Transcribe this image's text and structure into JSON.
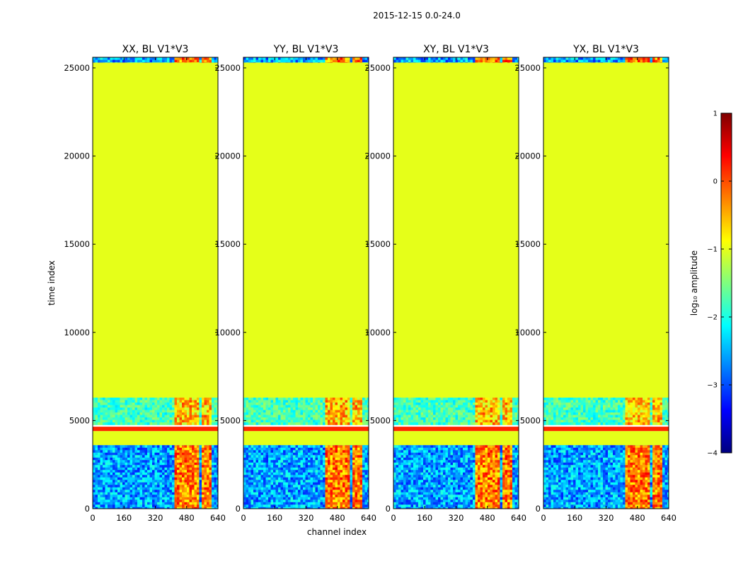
{
  "figure": {
    "suptitle": "2015-12-15 0.0-24.0",
    "xlabel": "channel index",
    "ylabel": "time index"
  },
  "colorbar": {
    "label": "log₁₀ amplitude",
    "ticks": [
      {
        "value": 1,
        "label": "1"
      },
      {
        "value": 0,
        "label": "0"
      },
      {
        "value": -1,
        "label": "−1"
      },
      {
        "value": -2,
        "label": "−2"
      },
      {
        "value": -3,
        "label": "−3"
      },
      {
        "value": -4,
        "label": "−4"
      }
    ],
    "colormap": "jet",
    "range": [
      -4,
      1
    ],
    "color_stops": [
      "#00007f",
      "#0000ff",
      "#007fff",
      "#00ffff",
      "#7fff7f",
      "#ffff00",
      "#ff7f00",
      "#ff0000",
      "#7f0000"
    ]
  },
  "chart_data": [
    {
      "type": "heatmap",
      "title": "XX, BL V1*V3",
      "xlabel": "channel index",
      "ylabel": "time index",
      "xlim": [
        0,
        640
      ],
      "ylim": [
        0,
        25600
      ],
      "xticks": [
        0,
        160,
        320,
        480,
        640
      ],
      "yticks": [
        0,
        5000,
        10000,
        15000,
        20000,
        25000
      ],
      "rows": [
        {
          "from": 25300,
          "to": 25600,
          "kind": "noise"
        },
        {
          "from": 6300,
          "to": 25300,
          "kind": "uniform",
          "log_amp": -1.0
        },
        {
          "from": 4800,
          "to": 6300,
          "kind": "medium"
        },
        {
          "from": 4400,
          "to": 4650,
          "kind": "band",
          "log_amp": 0.2
        },
        {
          "from": 3600,
          "to": 4400,
          "kind": "uniform",
          "log_amp": -1.0
        },
        {
          "from": 0,
          "to": 3600,
          "kind": "noise"
        }
      ],
      "hot_channels": [
        [
          405,
          450
        ],
        [
          455,
          495
        ],
        [
          505,
          540
        ],
        [
          555,
          595
        ]
      ]
    },
    {
      "type": "heatmap",
      "title": "YY, BL V1*V3",
      "xlabel": "channel index",
      "ylabel": "time index",
      "xlim": [
        0,
        640
      ],
      "ylim": [
        0,
        25600
      ],
      "xticks": [
        0,
        160,
        320,
        480,
        640
      ],
      "yticks": [
        0,
        5000,
        10000,
        15000,
        20000,
        25000
      ],
      "rows": [
        {
          "from": 25300,
          "to": 25600,
          "kind": "noise"
        },
        {
          "from": 6300,
          "to": 25300,
          "kind": "uniform",
          "log_amp": -1.0
        },
        {
          "from": 4800,
          "to": 6300,
          "kind": "medium"
        },
        {
          "from": 4400,
          "to": 4650,
          "kind": "band",
          "log_amp": 0.2
        },
        {
          "from": 3600,
          "to": 4400,
          "kind": "uniform",
          "log_amp": -1.0
        },
        {
          "from": 0,
          "to": 3600,
          "kind": "noise"
        }
      ],
      "hot_channels": [
        [
          405,
          450
        ],
        [
          455,
          495
        ],
        [
          505,
          540
        ],
        [
          555,
          595
        ]
      ]
    },
    {
      "type": "heatmap",
      "title": "XY, BL V1*V3",
      "xlabel": "channel index",
      "ylabel": "time index",
      "xlim": [
        0,
        640
      ],
      "ylim": [
        0,
        25600
      ],
      "xticks": [
        0,
        160,
        320,
        480,
        640
      ],
      "yticks": [
        0,
        5000,
        10000,
        15000,
        20000,
        25000
      ],
      "rows": [
        {
          "from": 25300,
          "to": 25600,
          "kind": "noise"
        },
        {
          "from": 6300,
          "to": 25300,
          "kind": "uniform",
          "log_amp": -1.0
        },
        {
          "from": 4800,
          "to": 6300,
          "kind": "medium"
        },
        {
          "from": 4400,
          "to": 4650,
          "kind": "band",
          "log_amp": 0.2
        },
        {
          "from": 3600,
          "to": 4400,
          "kind": "uniform",
          "log_amp": -1.0
        },
        {
          "from": 0,
          "to": 3600,
          "kind": "noise"
        }
      ],
      "hot_channels": [
        [
          405,
          450
        ],
        [
          455,
          495
        ],
        [
          505,
          540
        ],
        [
          555,
          595
        ]
      ]
    },
    {
      "type": "heatmap",
      "title": "YX, BL V1*V3",
      "xlabel": "channel index",
      "ylabel": "time index",
      "xlim": [
        0,
        640
      ],
      "ylim": [
        0,
        25600
      ],
      "xticks": [
        0,
        160,
        320,
        480,
        640
      ],
      "yticks": [
        0,
        5000,
        10000,
        15000,
        20000,
        25000
      ],
      "rows": [
        {
          "from": 25300,
          "to": 25600,
          "kind": "noise"
        },
        {
          "from": 6300,
          "to": 25300,
          "kind": "uniform",
          "log_amp": -1.0
        },
        {
          "from": 4800,
          "to": 6300,
          "kind": "medium"
        },
        {
          "from": 4400,
          "to": 4650,
          "kind": "band",
          "log_amp": 0.2
        },
        {
          "from": 3600,
          "to": 4400,
          "kind": "uniform",
          "log_amp": -1.0
        },
        {
          "from": 0,
          "to": 3600,
          "kind": "noise"
        }
      ],
      "hot_channels": [
        [
          405,
          450
        ],
        [
          455,
          495
        ],
        [
          505,
          540
        ],
        [
          555,
          595
        ]
      ]
    }
  ]
}
